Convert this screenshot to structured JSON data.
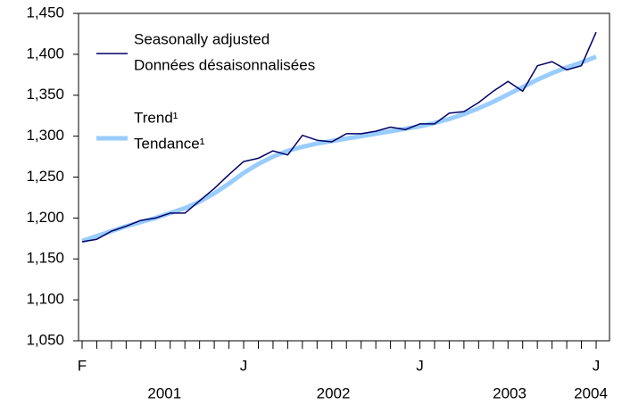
{
  "chart_data": {
    "type": "line",
    "categories": [
      "F",
      null,
      null,
      null,
      null,
      null,
      null,
      null,
      null,
      null,
      null,
      "J",
      null,
      null,
      null,
      null,
      null,
      null,
      null,
      null,
      null,
      null,
      null,
      "J",
      null,
      null,
      null,
      null,
      null,
      null,
      null,
      null,
      null,
      null,
      null,
      "J"
    ],
    "year_labels": [
      "2001",
      "2002",
      "2003",
      "2004"
    ],
    "series": [
      {
        "name": "Seasonally adjusted",
        "name_fr": "Données désaisonnalisées",
        "color": "#000066",
        "values": [
          1171,
          1174,
          1184,
          1190,
          1197,
          1200,
          1206,
          1206,
          1221,
          1236,
          1253,
          1269,
          1273,
          1282,
          1277,
          1301,
          1295,
          1293,
          1303,
          1303,
          1306,
          1311,
          1308,
          1315,
          1315,
          1328,
          1330,
          1341,
          1355,
          1367,
          1355,
          1386,
          1391,
          1381,
          1386,
          1427
        ]
      },
      {
        "name": "Trend¹",
        "name_fr": "Tendance¹",
        "color": "#99ccff",
        "values": [
          1172,
          1178,
          1184,
          1190,
          1195,
          1200,
          1206,
          1212,
          1220,
          1230,
          1242,
          1255,
          1266,
          1275,
          1282,
          1287,
          1291,
          1294,
          1297,
          1300,
          1303,
          1306,
          1309,
          1312,
          1316,
          1321,
          1327,
          1334,
          1342,
          1351,
          1360,
          1369,
          1377,
          1384,
          1390,
          1397
        ]
      }
    ],
    "ylim": [
      1050,
      1450
    ],
    "yticks": [
      {
        "value": 1050,
        "label": "1,050"
      },
      {
        "value": 1100,
        "label": "1,100"
      },
      {
        "value": 1150,
        "label": "1,150"
      },
      {
        "value": 1200,
        "label": "1,200"
      },
      {
        "value": 1250,
        "label": "1,250"
      },
      {
        "value": 1300,
        "label": "1,300"
      },
      {
        "value": 1350,
        "label": "1,350"
      },
      {
        "value": 1400,
        "label": "1,400"
      },
      {
        "value": 1450,
        "label": "1,450"
      }
    ],
    "grid": false
  }
}
